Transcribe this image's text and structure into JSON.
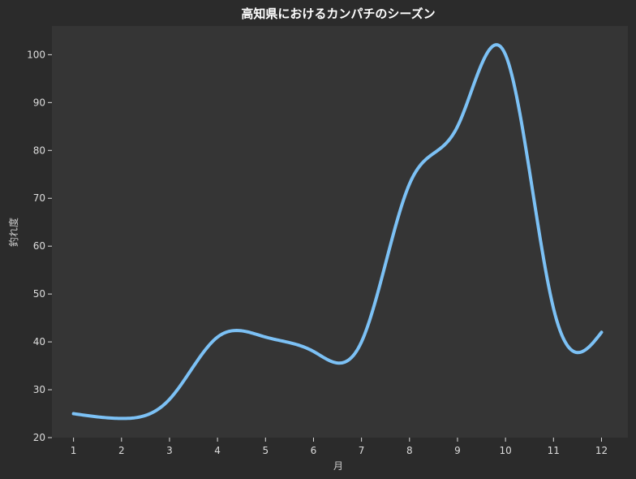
{
  "chart_data": {
    "type": "line",
    "title": "高知県におけるカンパチのシーズン",
    "xlabel": "月",
    "ylabel": "釣れ度",
    "x": [
      1,
      2,
      3,
      4,
      5,
      6,
      7,
      8,
      9,
      10,
      11,
      12
    ],
    "series": [
      {
        "values": [
          25,
          24,
          28,
          41,
          41,
          38,
          40,
          73,
          85,
          100,
          47,
          42
        ],
        "color": "#7cc1f5"
      }
    ],
    "xlim": [
      0.55,
      12.55
    ],
    "ylim": [
      20,
      106
    ],
    "yticks": [
      20,
      30,
      40,
      50,
      60,
      70,
      80,
      90,
      100
    ],
    "grid": false,
    "legend": "none",
    "colors": {
      "page_bg": "#2b2b2b",
      "plot_bg": "#353535",
      "line": "#7cc1f5"
    }
  }
}
